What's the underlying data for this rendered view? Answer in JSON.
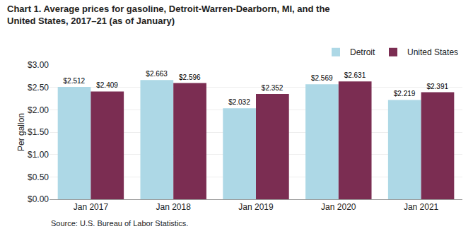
{
  "chart_data": {
    "type": "bar",
    "title": "Chart 1. Average prices for gasoline, Detroit-Warren-Dearborn, MI, and the\nUnited States, 2017–21 (as of January)",
    "ylabel": "Per gallon",
    "source": "Source: U.S. Bureau of Labor Statistics.",
    "categories": [
      "Jan 2017",
      "Jan 2018",
      "Jan 2019",
      "Jan 2020",
      "Jan 2021"
    ],
    "series": [
      {
        "name": "Detroit",
        "color": "#add8e6",
        "values": [
          2.512,
          2.663,
          2.032,
          2.569,
          2.219
        ],
        "value_labels": [
          "$2.512",
          "$2.663",
          "$2.032",
          "$2.569",
          "$2.219"
        ]
      },
      {
        "name": "United States",
        "color": "#7b2d52",
        "values": [
          2.409,
          2.596,
          2.352,
          2.631,
          2.391
        ],
        "value_labels": [
          "$2.409",
          "$2.596",
          "$2.352",
          "$2.631",
          "$2.391"
        ]
      }
    ],
    "ylim": [
      0.0,
      3.0
    ],
    "yticks": [
      {
        "value": 0.0,
        "label": "$0.00"
      },
      {
        "value": 0.5,
        "label": "$0.50"
      },
      {
        "value": 1.0,
        "label": "$1.00"
      },
      {
        "value": 1.5,
        "label": "$1.50"
      },
      {
        "value": 2.0,
        "label": "$2.00"
      },
      {
        "value": 2.5,
        "label": "$2.50"
      },
      {
        "value": 3.0,
        "label": "$3.00"
      }
    ],
    "grid": true,
    "legend": "upper right",
    "data_labels": true
  }
}
